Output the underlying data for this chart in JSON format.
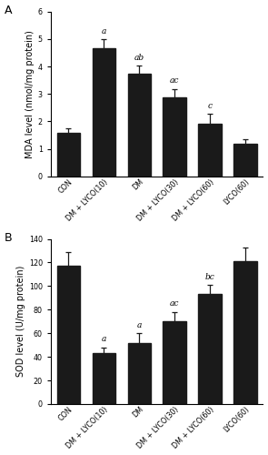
{
  "panel_A": {
    "categories": [
      "CON",
      "DM + LYCO(10)",
      "DM",
      "DM + LYCO(30)",
      "DM + LYCO(60)",
      "LYCO(60)"
    ],
    "values": [
      1.57,
      4.67,
      3.75,
      2.88,
      1.92,
      1.18
    ],
    "errors": [
      0.17,
      0.32,
      0.28,
      0.3,
      0.35,
      0.18
    ],
    "annotations": [
      "",
      "a",
      "ab",
      "ac",
      "c",
      ""
    ],
    "ylabel": "MDA level (nmol/mg protein)",
    "ylim": [
      0,
      6
    ],
    "yticks": [
      0,
      1,
      2,
      3,
      4,
      5,
      6
    ],
    "panel_label": "A"
  },
  "panel_B": {
    "categories": [
      "CON",
      "DM + LYCO(10)",
      "DM",
      "DM + LYCO(30)",
      "DM + LYCO(60)",
      "LYCO(60)"
    ],
    "values": [
      117,
      43,
      52,
      70,
      93,
      121
    ],
    "errors": [
      12,
      5,
      8,
      8,
      8,
      12
    ],
    "annotations": [
      "",
      "a",
      "a",
      "ac",
      "bc",
      ""
    ],
    "ylabel": "SOD level (U/mg protein)",
    "ylim": [
      0,
      140
    ],
    "yticks": [
      0,
      20,
      40,
      60,
      80,
      100,
      120,
      140
    ],
    "panel_label": "B"
  },
  "bar_color": "#1a1a1a",
  "error_color": "#1a1a1a",
  "annotation_fontsize": 6.5,
  "tick_fontsize": 5.8,
  "label_fontsize": 7.0,
  "panel_label_fontsize": 9,
  "bar_width": 0.65
}
